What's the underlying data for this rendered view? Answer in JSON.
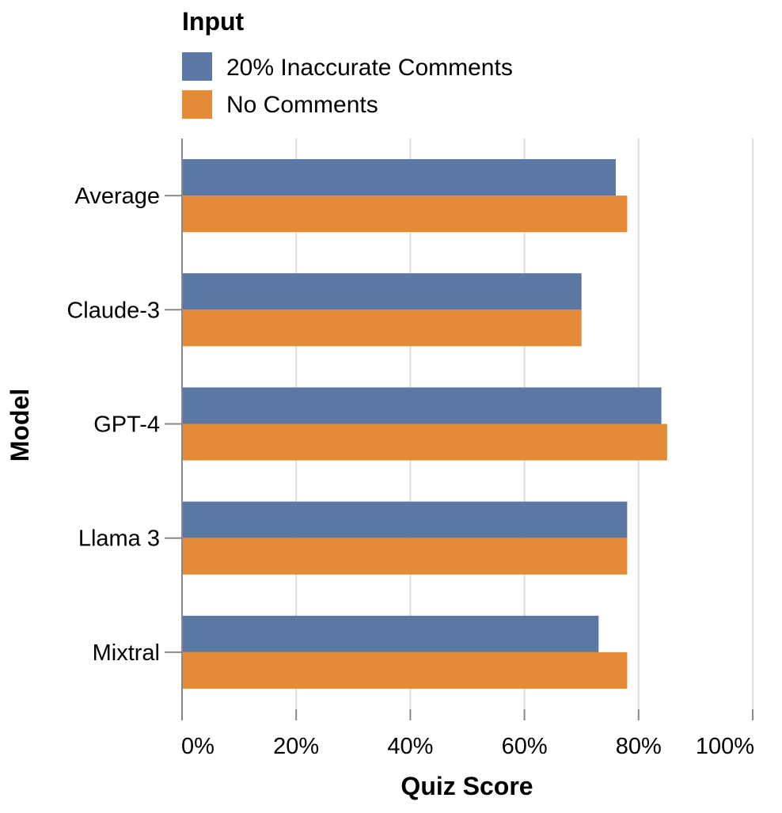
{
  "chart_data": {
    "type": "bar",
    "orientation": "horizontal",
    "categories": [
      "Average",
      "Claude-3",
      "GPT-4",
      "Llama 3",
      "Mixtral"
    ],
    "series": [
      {
        "name": "20% Inaccurate Comments",
        "color": "#5b78a5",
        "values": [
          76,
          70,
          84,
          78,
          73
        ]
      },
      {
        "name": "No Comments",
        "color": "#e38b37",
        "values": [
          78,
          70,
          85,
          78,
          78
        ]
      }
    ],
    "legend": {
      "title": "Input",
      "placement": "top-left"
    },
    "xlabel": "Quiz Score",
    "ylabel": "Model",
    "xlim": [
      0,
      100
    ],
    "xticks": [
      0,
      20,
      40,
      60,
      80,
      100
    ],
    "xtick_labels": [
      "0%",
      "20%",
      "40%",
      "60%",
      "80%",
      "100%"
    ],
    "grid": true
  }
}
